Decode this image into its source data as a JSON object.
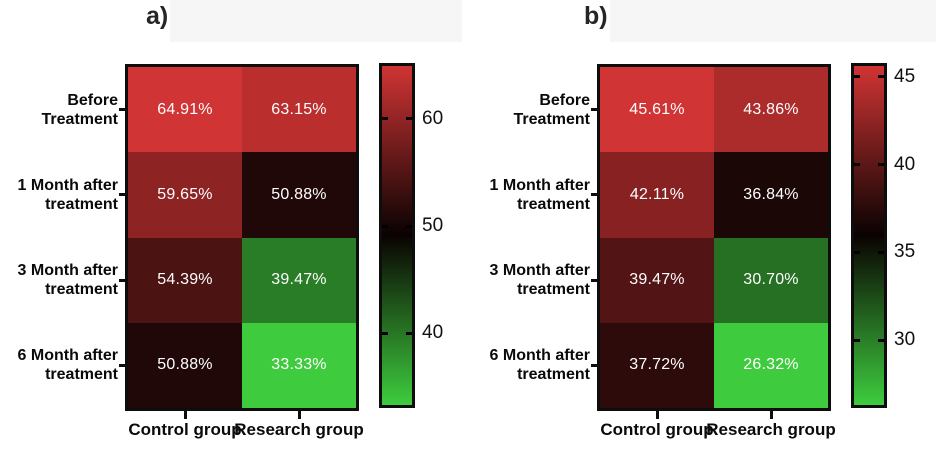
{
  "figure": {
    "background": "#ffffff",
    "title_band_color": "#f6f6f6"
  },
  "colormap": {
    "description": "red-black-green diverging, red = high, black = midpoint, green = low",
    "high": "#d03434",
    "mid": "#0a0202",
    "low": "#3ecc3e"
  },
  "chart_data": [
    {
      "type": "heatmap",
      "title": "a)",
      "rows": [
        "Before Treatment",
        "1 Month after treatment",
        "3 Month after treatment",
        "6 Month after treatment"
      ],
      "row_label_lines": [
        [
          "Before",
          "Treatment"
        ],
        [
          "1 Month after",
          "treatment"
        ],
        [
          "3 Month after",
          "treatment"
        ],
        [
          "6 Month after",
          "treatment"
        ]
      ],
      "columns": [
        "Control group",
        "Research group"
      ],
      "values": [
        [
          64.91,
          63.15
        ],
        [
          59.65,
          50.88
        ],
        [
          54.39,
          39.47
        ],
        [
          50.88,
          33.33
        ]
      ],
      "cell_labels": [
        [
          "64.91%",
          "63.15%"
        ],
        [
          "59.65%",
          "50.88%"
        ],
        [
          "54.39%",
          "39.47%"
        ],
        [
          "50.88%",
          "33.33%"
        ]
      ],
      "vmin": 33.33,
      "vmax": 64.91,
      "colormap": "red-black-green",
      "colorbar": {
        "position": "right",
        "ticks": [
          60,
          50,
          40
        ]
      }
    },
    {
      "type": "heatmap",
      "title": "b)",
      "rows": [
        "Before Treatment",
        "1 Month after treatment",
        "3 Month after treatment",
        "6 Month after treatment"
      ],
      "row_label_lines": [
        [
          "Before",
          "Treatment"
        ],
        [
          "1 Month after",
          "treatment"
        ],
        [
          "3 Month after",
          "treatment"
        ],
        [
          "6 Month after",
          "treatment"
        ]
      ],
      "columns": [
        "Control group",
        "Research group"
      ],
      "values": [
        [
          45.61,
          43.86
        ],
        [
          42.11,
          36.84
        ],
        [
          39.47,
          30.7
        ],
        [
          37.72,
          26.32
        ]
      ],
      "cell_labels": [
        [
          "45.61%",
          "43.86%"
        ],
        [
          "42.11%",
          "36.84%"
        ],
        [
          "39.47%",
          "30.70%"
        ],
        [
          "37.72%",
          "26.32%"
        ]
      ],
      "vmin": 26.32,
      "vmax": 45.61,
      "colormap": "red-black-green",
      "colorbar": {
        "position": "right",
        "ticks": [
          45,
          40,
          35,
          30
        ]
      }
    }
  ]
}
